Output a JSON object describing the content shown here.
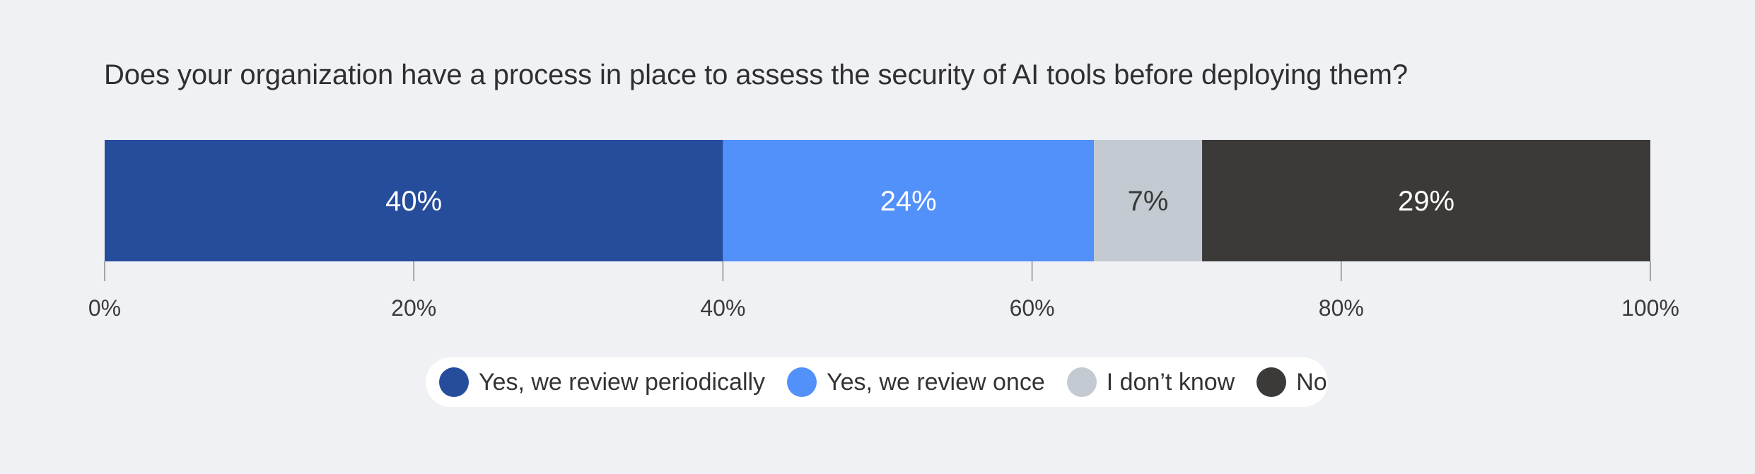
{
  "title": "Does your organization have a process in place to assess the security of AI tools before deploying them?",
  "chart_data": {
    "type": "bar",
    "orientation": "horizontal",
    "stacked": true,
    "title": "Does your organization have a process in place to assess the security of AI tools before deploying them?",
    "series": [
      {
        "name": "Yes, we review periodically",
        "value": 40,
        "label": "40%",
        "color": "#264c9c",
        "label_color": "#ffffff"
      },
      {
        "name": "Yes, we review once",
        "value": 24,
        "label": "24%",
        "color": "#5290fa",
        "label_color": "#ffffff"
      },
      {
        "name": "I don’t know",
        "value": 7,
        "label": "7%",
        "color": "#c4cad1",
        "label_color": "#3a3a3a"
      },
      {
        "name": "No",
        "value": 29,
        "label": "29%",
        "color": "#3c3a38",
        "label_color": "#ffffff"
      }
    ],
    "xlim": [
      0,
      100
    ],
    "xticks": [
      0,
      20,
      40,
      60,
      80,
      100
    ],
    "xtick_labels": [
      "0%",
      "20%",
      "40%",
      "60%",
      "80%",
      "100%"
    ],
    "grid": false,
    "legend_position": "bottom"
  }
}
